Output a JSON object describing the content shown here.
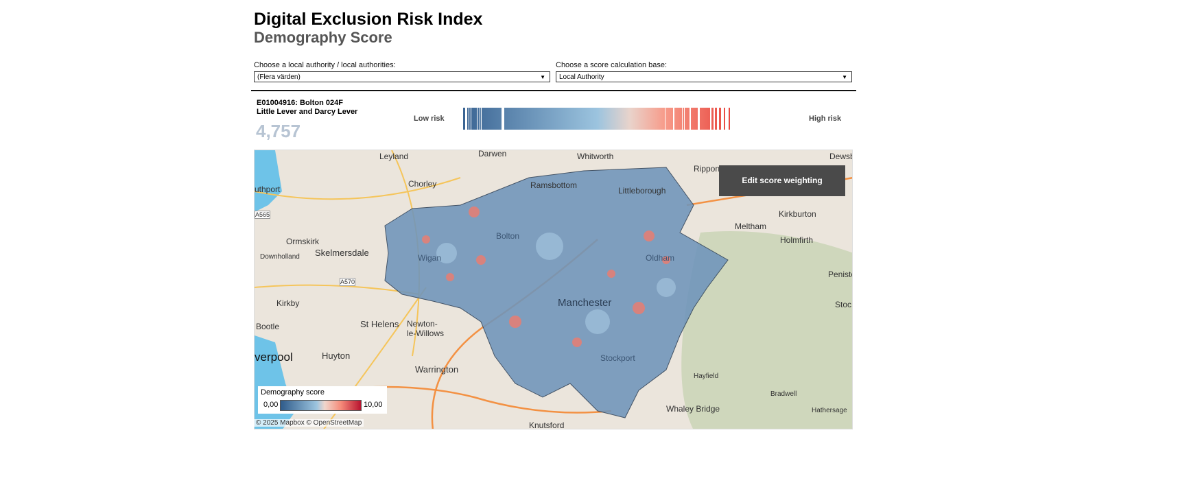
{
  "header": {
    "title": "Digital Exclusion Risk Index",
    "subtitle": "Demography Score"
  },
  "filters": {
    "authority": {
      "label": "Choose a local authority / local authorities:",
      "value": "(Flera värden)"
    },
    "base": {
      "label": "Choose a score calculation base:",
      "value": "Local Authority"
    }
  },
  "selection": {
    "code": "E01004916: Bolton 024F",
    "name": "Little Lever and Darcy Lever",
    "score": "4,757"
  },
  "risk_scale": {
    "low": "Low risk",
    "high": "High risk"
  },
  "map": {
    "edit_button": "Edit score weighting",
    "places": [
      "Leyland",
      "Darwen",
      "Whitworth",
      "Rippon",
      "Dewsbu",
      "Chorley",
      "Ramsbottom",
      "Littleborough",
      "uthport",
      "A565",
      "Meltham",
      "Kirkburton",
      "Holmfirth",
      "Ormskirk",
      "Skelmersdale",
      "Downholland",
      "A570",
      "Penisto",
      "Kirkby",
      "St Helens",
      "Newton-",
      "le-Willows",
      "Stoc",
      "Bootle",
      "verpool",
      "Huyton",
      "Warrington",
      "Hayfield",
      "Whaley Bridge",
      "Bradwell",
      "Hathersage",
      "Knutsford",
      "Manchester",
      "Bolton",
      "Wigan",
      "Stockport",
      "Oldham"
    ],
    "legend": {
      "title": "Demography score",
      "min": "0,00",
      "max": "10,00"
    },
    "attribution": "© 2025 Mapbox  © OpenStreetMap"
  },
  "colors": {
    "low": "#2f5b8a",
    "mid": "#b9d3e6",
    "high": "#e8544a"
  }
}
